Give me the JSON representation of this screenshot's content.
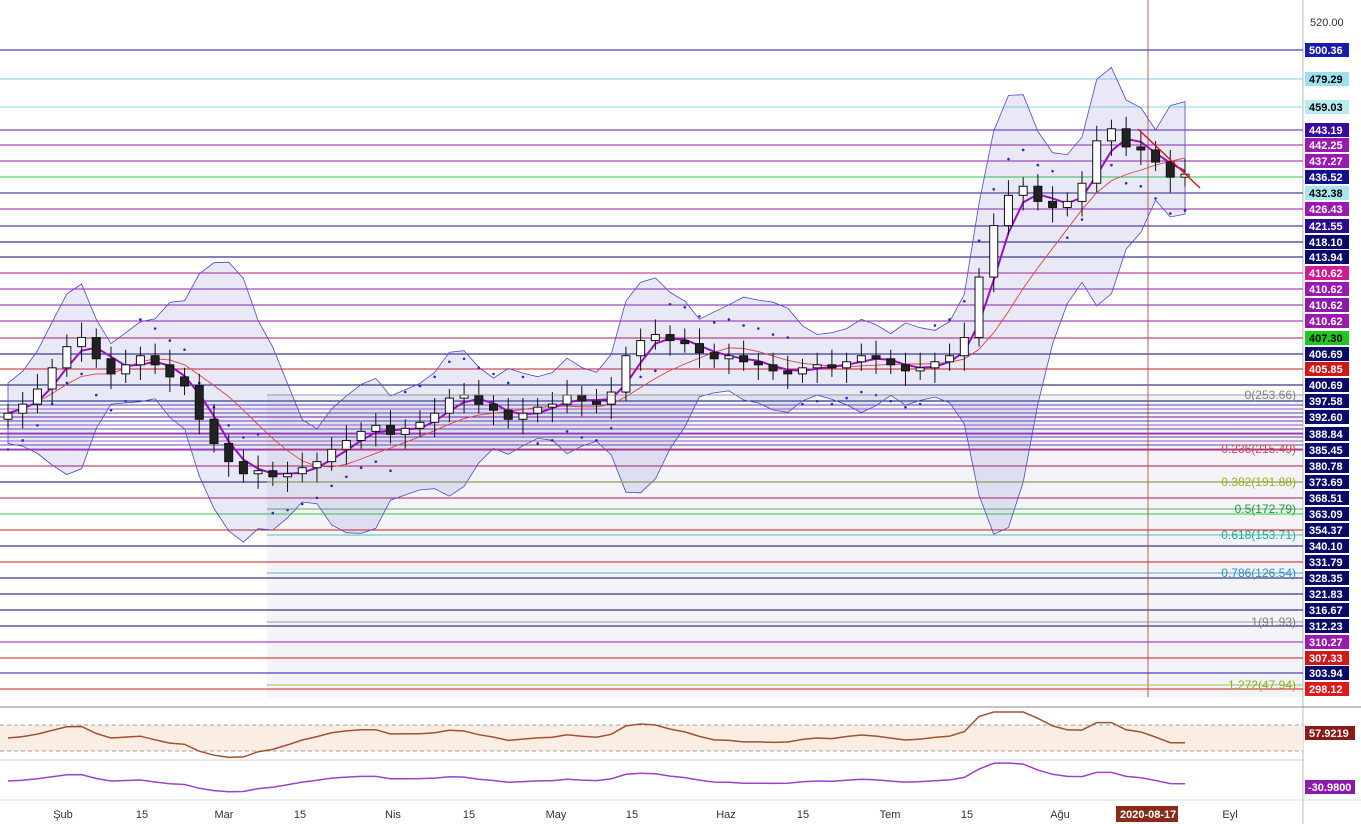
{
  "chart_data": {
    "type": "candlestick",
    "price_axis": {
      "top_tick": "520.00",
      "badges": [
        {
          "label": "500.36",
          "bg": "#1a1ab0",
          "fg": "#ffffff",
          "line": "#1a1ab0"
        },
        {
          "label": "479.29",
          "bg": "#9fe0ef",
          "fg": "#000000",
          "line": "#7fd4e8"
        },
        {
          "label": "459.03",
          "bg": "#b7ecf0",
          "fg": "#000000",
          "line": "#7fdcd8"
        },
        {
          "label": "443.19",
          "bg": "#3a0aa0",
          "fg": "#ffffff",
          "line": "#5a1aa8"
        },
        {
          "label": "442.25",
          "bg": "#9a1ab0",
          "fg": "#ffffff",
          "line": "#9a1ab0"
        },
        {
          "label": "437.27",
          "bg": "#9a1ab0",
          "fg": "#ffffff",
          "line": "#9a1ab0"
        },
        {
          "label": "436.52",
          "bg": "#101088",
          "fg": "#ffffff",
          "line": "#2ecc40"
        },
        {
          "label": "432.38",
          "bg": "#a7e6ee",
          "fg": "#000000",
          "line": "#1a1a80"
        },
        {
          "label": "426.43",
          "bg": "#9a1ab0",
          "fg": "#ffffff",
          "line": "#9a1ab0"
        },
        {
          "label": "421.55",
          "bg": "#2a0a90",
          "fg": "#ffffff",
          "line": "#2a0a90"
        },
        {
          "label": "418.10",
          "bg": "#0a0a6a",
          "fg": "#ffffff",
          "line": "#0a0a6a"
        },
        {
          "label": "413.94",
          "bg": "#0a0a6a",
          "fg": "#ffffff",
          "line": "#0a0a6a"
        },
        {
          "label": "410.62",
          "bg": "#d01a90",
          "fg": "#ffffff",
          "line": "#b01a80"
        },
        {
          "label": "410.62",
          "bg": "#9a1ab0",
          "fg": "#ffffff",
          "line": "#9a1ab0"
        },
        {
          "label": "410.62",
          "bg": "#8a1aa8",
          "fg": "#ffffff",
          "line": "#8a1aa8"
        },
        {
          "label": "410.62",
          "bg": "#9a1ab0",
          "fg": "#ffffff",
          "line": "#9a1ab0"
        },
        {
          "label": "407.30",
          "bg": "#1ec81e",
          "fg": "#000000",
          "line": "#b01a50"
        },
        {
          "label": "406.69",
          "bg": "#0a0a6a",
          "fg": "#ffffff",
          "line": "#0a0a6a"
        },
        {
          "label": "405.85",
          "bg": "#d01818",
          "fg": "#ffffff",
          "line": "#d01818"
        },
        {
          "label": "400.69",
          "bg": "#0a0a6a",
          "fg": "#ffffff",
          "line": "#0a0a6a"
        },
        {
          "label": "397.58",
          "bg": "#0a0a6a",
          "fg": "#ffffff",
          "line": "#0a0a6a"
        },
        {
          "label": "392.60",
          "bg": "#0a0a6a",
          "fg": "#ffffff",
          "line": "#0a0a6a"
        },
        {
          "label": "388.84",
          "bg": "#0a0a6a",
          "fg": "#ffffff",
          "line": "#9a1ab0"
        },
        {
          "label": "385.45",
          "bg": "#0a0a6a",
          "fg": "#ffffff",
          "line": "#9a1ab0"
        },
        {
          "label": "380.78",
          "bg": "#0a0a6a",
          "fg": "#ffffff",
          "line": "#b01a50"
        },
        {
          "label": "373.69",
          "bg": "#0a0a6a",
          "fg": "#ffffff",
          "line": "#0a0a6a"
        },
        {
          "label": "368.51",
          "bg": "#0a0a6a",
          "fg": "#ffffff",
          "line": "#b01a50"
        },
        {
          "label": "363.09",
          "bg": "#0a0a6a",
          "fg": "#ffffff",
          "line": "#2ecc40"
        },
        {
          "label": "354.37",
          "bg": "#0a0a6a",
          "fg": "#ffffff",
          "line": "#d01818"
        },
        {
          "label": "340.10",
          "bg": "#0a0a6a",
          "fg": "#ffffff",
          "line": "#0a0a6a"
        },
        {
          "label": "331.79",
          "bg": "#0a0a6a",
          "fg": "#ffffff",
          "line": "#d01818"
        },
        {
          "label": "328.35",
          "bg": "#0a0a6a",
          "fg": "#ffffff",
          "line": "#0a0a6a"
        },
        {
          "label": "321.83",
          "bg": "#0a0a6a",
          "fg": "#ffffff",
          "line": "#0a0a6a"
        },
        {
          "label": "316.67",
          "bg": "#0a0a6a",
          "fg": "#ffffff",
          "line": "#0a0a6a"
        },
        {
          "label": "312.23",
          "bg": "#0a0a6a",
          "fg": "#ffffff",
          "line": "#0a0a6a"
        },
        {
          "label": "310.27",
          "bg": "#9a1ab0",
          "fg": "#ffffff",
          "line": "#9a1ab0"
        },
        {
          "label": "307.33",
          "bg": "#d01818",
          "fg": "#ffffff",
          "line": "#d01818"
        },
        {
          "label": "303.94",
          "bg": "#0a0a6a",
          "fg": "#ffffff",
          "line": "#1a1ab0"
        },
        {
          "label": "298.12",
          "bg": "#e01818",
          "fg": "#ffffff",
          "line": "#e01818"
        }
      ]
    },
    "fibonacci": [
      {
        "label": "0(253.66)",
        "color": "#808080"
      },
      {
        "label": "0.236(215.49)",
        "color": "#d05050"
      },
      {
        "label": "0.382(191.88)",
        "color": "#9ab020"
      },
      {
        "label": "0.5(172.79)",
        "color": "#1a9a3a"
      },
      {
        "label": "0.618(153.71)",
        "color": "#1ab0a0"
      },
      {
        "label": "0.786(126.54)",
        "color": "#2a90c0"
      },
      {
        "label": "1(91.93)",
        "color": "#808080"
      },
      {
        "label": "1.272(47.94)",
        "color": "#8ab020"
      }
    ],
    "x_axis": {
      "labels": [
        "Şub",
        "15",
        "Mar",
        "15",
        "Nis",
        "15",
        "May",
        "15",
        "Haz",
        "15",
        "Tem",
        "15",
        "Ağu",
        "Eyl"
      ],
      "highlight_date": "2020-08-17"
    },
    "ohlc_approx": [
      380,
      383,
      388,
      395,
      402,
      405,
      398,
      393,
      396,
      399,
      396,
      392,
      389,
      378,
      370,
      364,
      360,
      361,
      359,
      360,
      362,
      364,
      368,
      371,
      374,
      376,
      373,
      375,
      377,
      380,
      385,
      386,
      383,
      381,
      378,
      380,
      382,
      383,
      386,
      384,
      383,
      387,
      399,
      404,
      406,
      404,
      403,
      400,
      398,
      399,
      397,
      396,
      394,
      393,
      395,
      396,
      395,
      397,
      399,
      398,
      396,
      394,
      395,
      397,
      399,
      405,
      425,
      442,
      452,
      455,
      450,
      448,
      450,
      456,
      470,
      474,
      468,
      467,
      463,
      458,
      459
    ],
    "indicator_1": {
      "value": "57.9219",
      "color": "#a0522d",
      "badge_bg": "#8b1a1a"
    },
    "indicator_2": {
      "value": "-30.9800",
      "color": "#a040c8",
      "badge_bg": "#8a1ab0"
    }
  }
}
